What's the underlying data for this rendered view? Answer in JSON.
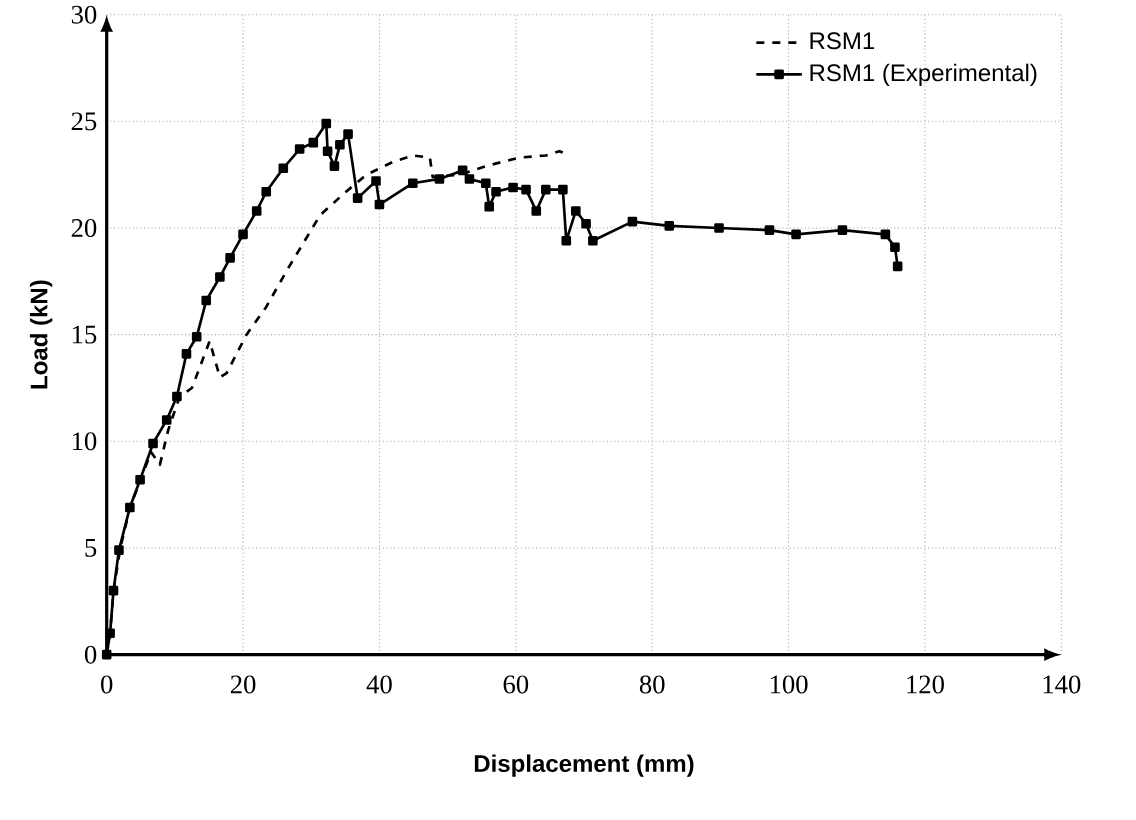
{
  "chart_data": {
    "type": "line",
    "xlabel": "Displacement (mm)",
    "ylabel": "Load (kN)",
    "xlim": [
      0,
      140
    ],
    "ylim": [
      0,
      30
    ],
    "xticks": [
      0,
      20,
      40,
      60,
      80,
      100,
      120,
      140
    ],
    "yticks": [
      0,
      5,
      10,
      15,
      20,
      25,
      30
    ],
    "grid": true,
    "legend": "top right",
    "series": [
      {
        "name": "RSM1",
        "color": "#000000",
        "line_style": "dashed",
        "marker": "none",
        "x": [
          0,
          0.5,
          1,
          2,
          3.5,
          5,
          6.5,
          7.8,
          9,
          10.7,
          12.5,
          15.1,
          16.6,
          17.6,
          20.5,
          23.4,
          26.4,
          31.3,
          35.1,
          38.1,
          42,
          44.9,
          47.4,
          47.8,
          51.8,
          55.6,
          60.5,
          64.4,
          66.4,
          67.2
        ],
        "values": [
          0,
          1,
          3,
          5,
          7,
          8.2,
          9.5,
          8.9,
          10.5,
          12.1,
          12.5,
          14.7,
          13,
          13.2,
          15,
          16.3,
          18,
          20.6,
          21.7,
          22.5,
          23.1,
          23.4,
          23.3,
          22.4,
          22.5,
          22.9,
          23.3,
          23.4,
          23.6,
          23.5
        ]
      },
      {
        "name": "RSM1 (Experimental)",
        "color": "#000000",
        "line_style": "solid",
        "marker": "square",
        "x": [
          0,
          0.5,
          1,
          1.8,
          3.4,
          4.9,
          6.8,
          8.8,
          10.3,
          11.7,
          13.2,
          14.6,
          16.6,
          18.1,
          20,
          22,
          23.4,
          25.9,
          28.3,
          30.3,
          32.2,
          32.4,
          33.4,
          34.2,
          35.4,
          36.8,
          39.5,
          40,
          44.9,
          48.8,
          52.2,
          53.2,
          55.6,
          56.1,
          57.1,
          59.6,
          61.5,
          63,
          64.4,
          66.9,
          67.4,
          68.8,
          70.3,
          71.3,
          77.1,
          82.5,
          89.8,
          97.2,
          101.1,
          107.9,
          114.2,
          115.6,
          116
        ],
        "values": [
          0,
          1,
          3,
          4.9,
          6.9,
          8.2,
          9.9,
          11,
          12.1,
          14.1,
          14.9,
          16.6,
          17.7,
          18.6,
          19.7,
          20.8,
          21.7,
          22.8,
          23.7,
          24,
          24.9,
          23.6,
          22.9,
          23.9,
          24.4,
          21.4,
          22.2,
          21.1,
          22.1,
          22.3,
          22.7,
          22.3,
          22.1,
          21,
          21.7,
          21.9,
          21.8,
          20.8,
          21.8,
          21.8,
          19.4,
          20.8,
          20.2,
          19.4,
          20.3,
          20.1,
          20,
          19.9,
          19.7,
          19.9,
          19.7,
          19.1,
          18.2
        ]
      }
    ]
  }
}
